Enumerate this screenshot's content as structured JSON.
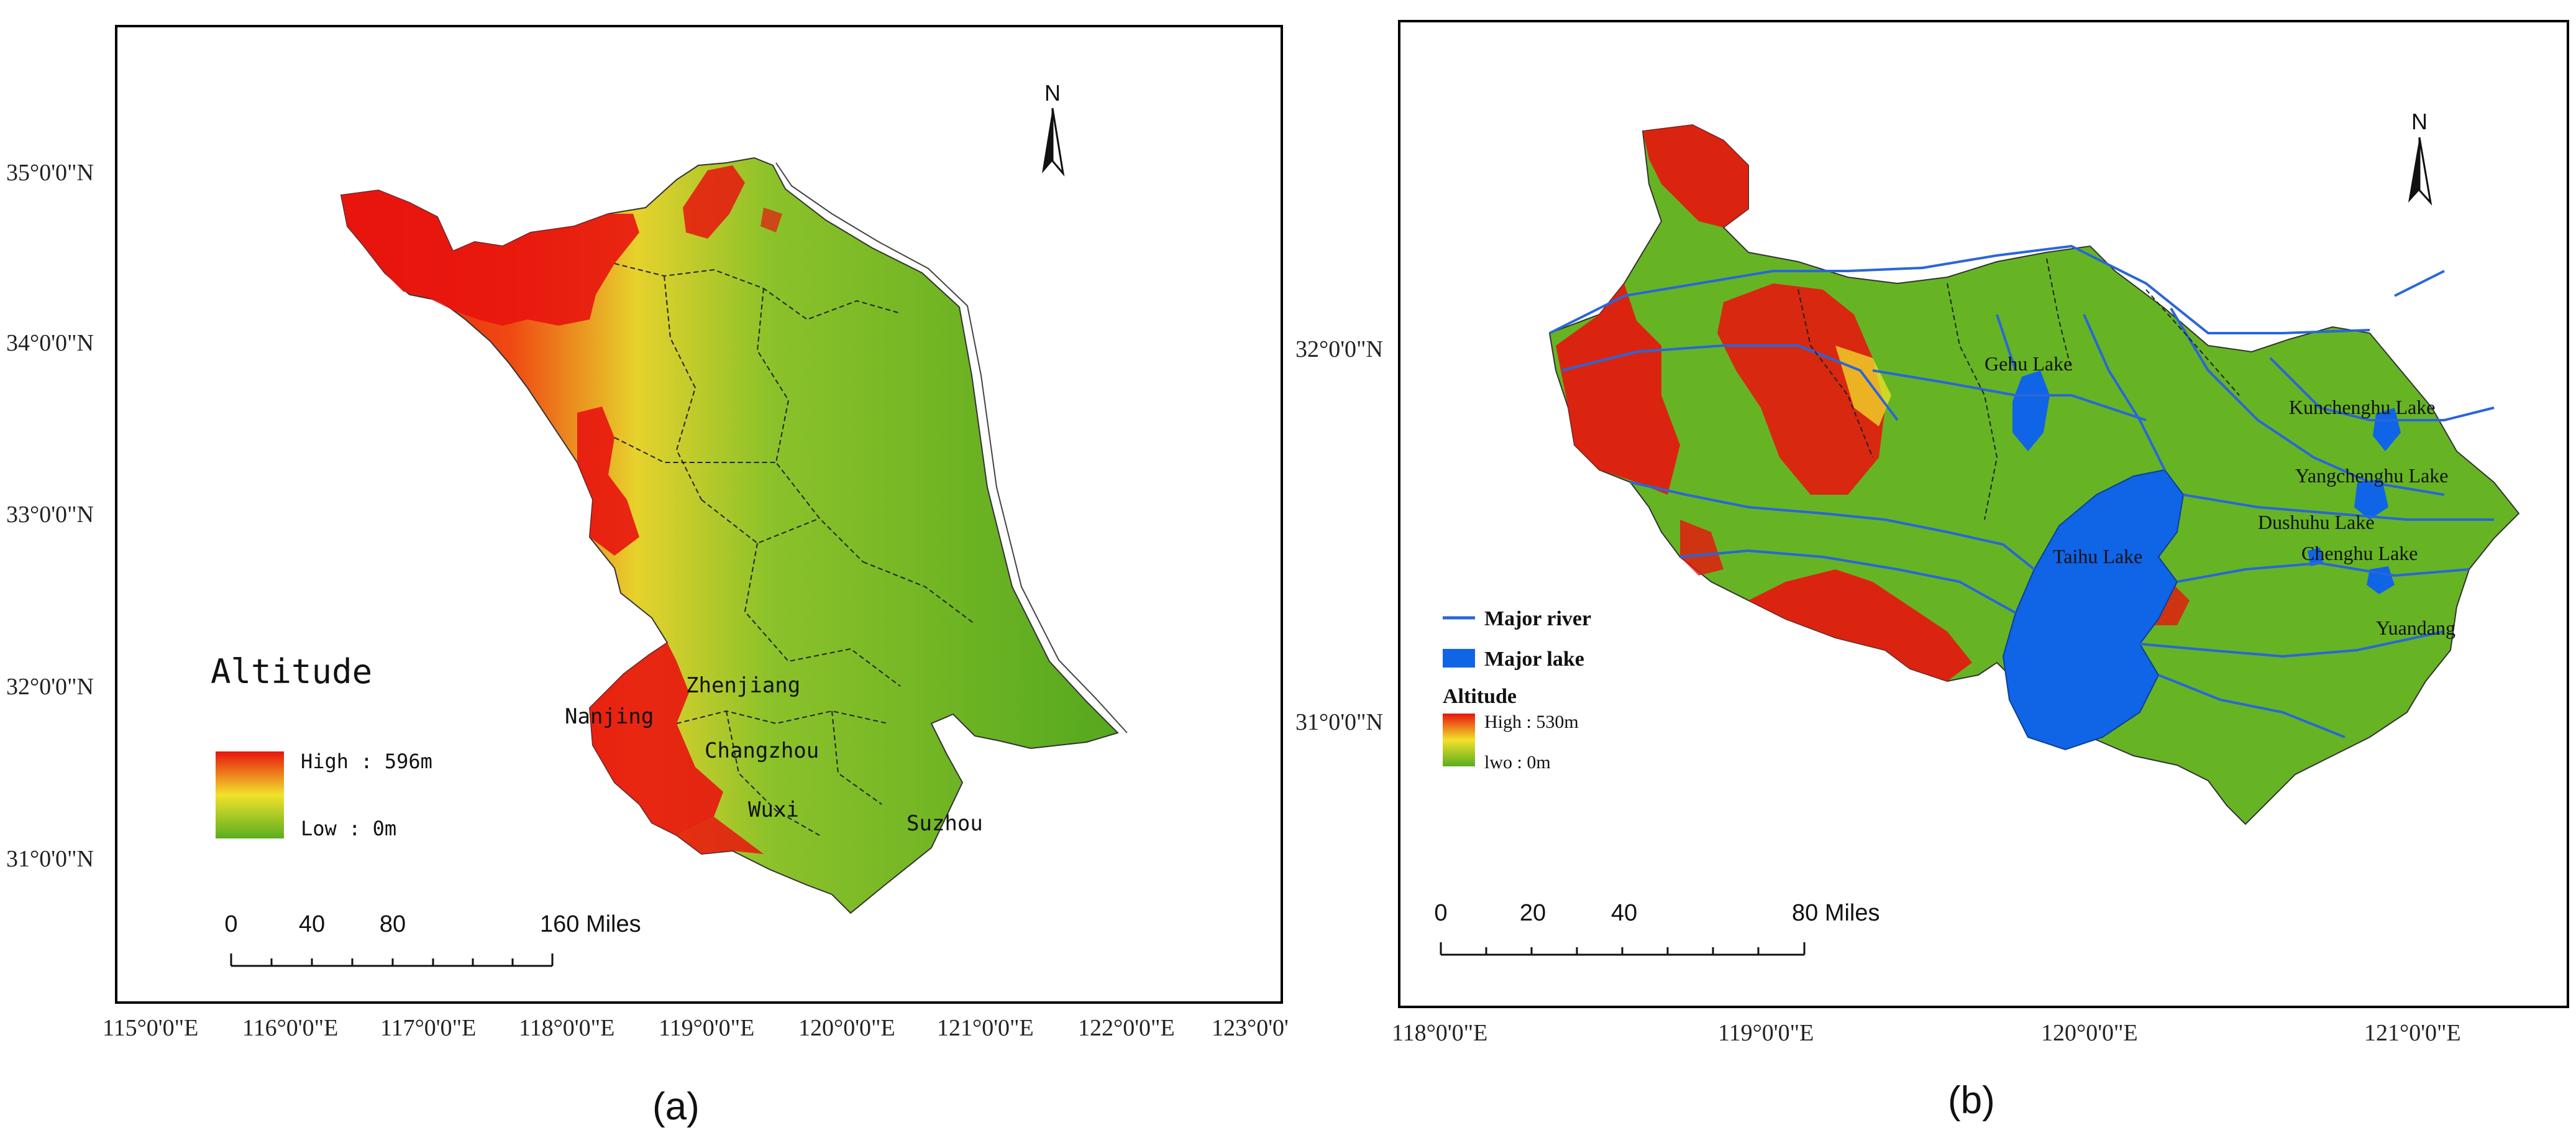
{
  "panel_a": {
    "caption": "(a)",
    "lat_ticks": [
      "35°0'0\"N",
      "34°0'0\"N",
      "33°0'0\"N",
      "32°0'0\"N",
      "31°0'0\"N"
    ],
    "lon_ticks": [
      "115°0'0\"E",
      "116°0'0\"E",
      "117°0'0\"E",
      "118°0'0\"E",
      "119°0'0\"E",
      "120°0'0\"E",
      "121°0'0\"E",
      "122°0'0\"E",
      "123°0'0'"
    ],
    "legend": {
      "title": "Altitude",
      "high": "High : 596m",
      "low": "Low : 0m"
    },
    "north_label": "N",
    "scale": {
      "labels": [
        "0",
        "40",
        "80",
        "160 Miles"
      ]
    },
    "places": [
      "Zhenjiang",
      "Nanjing",
      "Changzhou",
      "Wuxi",
      "Suzhou"
    ]
  },
  "panel_b": {
    "caption": "(b)",
    "lat_ticks": [
      "32°0'0\"N",
      "31°0'0\"N"
    ],
    "lon_ticks": [
      "118°0'0\"E",
      "119°0'0\"E",
      "120°0'0\"E",
      "121°0'0\"E"
    ],
    "legend": {
      "river": "Major river",
      "lake": "Major lake",
      "title": "Altitude",
      "high": "High : 530m",
      "low": "lwo : 0m"
    },
    "north_label": "N",
    "scale": {
      "labels": [
        "0",
        "20",
        "40",
        "80 Miles"
      ]
    },
    "places": [
      "Gehu Lake",
      "Kunchenghu Lake",
      "Yangchenghu Lake",
      "Dushuhu Lake",
      "Taihu Lake",
      "Chenghu Lake",
      "Yuandang"
    ]
  },
  "colors": {
    "high": "#e8140e",
    "mid": "#f2e22a",
    "low": "#5aae20",
    "lake": "#1064e6",
    "river": "#2a66d8"
  }
}
